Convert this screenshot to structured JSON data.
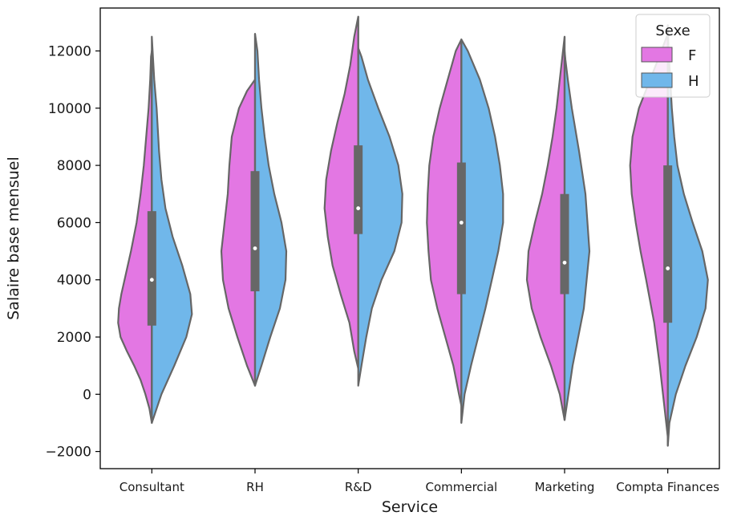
{
  "chart_data": {
    "type": "violin",
    "split": true,
    "xlabel": "Service",
    "ylabel": "Salaire base mensuel",
    "ylim": [
      -2600,
      13500
    ],
    "yticks": [
      -2000,
      0,
      2000,
      4000,
      6000,
      8000,
      10000,
      12000
    ],
    "ytick_labels": [
      "−2000",
      "0",
      "2000",
      "4000",
      "6000",
      "8000",
      "10000",
      "12000"
    ],
    "categories": [
      "Consultant",
      "RH",
      "R&D",
      "Commercial",
      "Marketing",
      "Compta Finances"
    ],
    "legend": {
      "title": "Sexe",
      "position": "top-right",
      "entries": [
        {
          "label": "F",
          "color": "#e377e3"
        },
        {
          "label": "H",
          "color": "#70b7ea"
        }
      ]
    },
    "series": [
      {
        "name": "F",
        "color": "#e377e3",
        "profiles": [
          [
            [
              -1000,
              0
            ],
            [
              -500,
              3
            ],
            [
              0,
              8
            ],
            [
              500,
              14
            ],
            [
              1000,
              22
            ],
            [
              1500,
              31
            ],
            [
              2000,
              39
            ],
            [
              2500,
              42
            ],
            [
              3000,
              41
            ],
            [
              3500,
              38
            ],
            [
              4000,
              34
            ],
            [
              5000,
              26
            ],
            [
              6000,
              19
            ],
            [
              7000,
              14
            ],
            [
              8000,
              10
            ],
            [
              9000,
              7
            ],
            [
              10000,
              4
            ],
            [
              11000,
              2
            ],
            [
              11800,
              1
            ],
            [
              12000,
              0
            ]
          ],
          [
            [
              300,
              0
            ],
            [
              1000,
              10
            ],
            [
              2000,
              22
            ],
            [
              3000,
              33
            ],
            [
              4000,
              40
            ],
            [
              5000,
              42
            ],
            [
              6000,
              38
            ],
            [
              7000,
              34
            ],
            [
              8000,
              32
            ],
            [
              9000,
              29
            ],
            [
              10000,
              20
            ],
            [
              10600,
              10
            ],
            [
              11000,
              0
            ]
          ],
          [
            [
              900,
              0
            ],
            [
              1500,
              5
            ],
            [
              2500,
              11
            ],
            [
              3500,
              22
            ],
            [
              4500,
              32
            ],
            [
              5500,
              38
            ],
            [
              6500,
              42
            ],
            [
              7500,
              40
            ],
            [
              8500,
              34
            ],
            [
              9500,
              26
            ],
            [
              10500,
              17
            ],
            [
              11500,
              10
            ],
            [
              12500,
              5
            ],
            [
              13200,
              0
            ]
          ],
          [
            [
              -400,
              0
            ],
            [
              0,
              3
            ],
            [
              1000,
              10
            ],
            [
              2000,
              20
            ],
            [
              3000,
              30
            ],
            [
              4000,
              38
            ],
            [
              5000,
              41
            ],
            [
              6000,
              43
            ],
            [
              7000,
              42
            ],
            [
              8000,
              40
            ],
            [
              9000,
              35
            ],
            [
              10000,
              27
            ],
            [
              11000,
              17
            ],
            [
              12000,
              7
            ],
            [
              12400,
              0
            ]
          ],
          [
            [
              -900,
              0
            ],
            [
              0,
              6
            ],
            [
              1000,
              17
            ],
            [
              2000,
              30
            ],
            [
              3000,
              41
            ],
            [
              4000,
              47
            ],
            [
              5000,
              45
            ],
            [
              6000,
              37
            ],
            [
              7000,
              28
            ],
            [
              8000,
              21
            ],
            [
              9000,
              15
            ],
            [
              10000,
              10
            ],
            [
              11000,
              6
            ],
            [
              12000,
              2
            ],
            [
              12500,
              0
            ]
          ],
          [
            [
              -1500,
              0
            ],
            [
              -500,
              4
            ],
            [
              1000,
              10
            ],
            [
              2500,
              17
            ],
            [
              4000,
              27
            ],
            [
              5000,
              34
            ],
            [
              6000,
              40
            ],
            [
              7000,
              45
            ],
            [
              8000,
              47
            ],
            [
              9000,
              44
            ],
            [
              10000,
              36
            ],
            [
              11000,
              22
            ],
            [
              12000,
              8
            ],
            [
              12600,
              0
            ]
          ]
        ]
      },
      {
        "name": "H",
        "color": "#70b7ea",
        "profiles": [
          [
            [
              -1000,
              0
            ],
            [
              0,
              12
            ],
            [
              1000,
              28
            ],
            [
              2000,
              43
            ],
            [
              2800,
              50
            ],
            [
              3500,
              48
            ],
            [
              4500,
              38
            ],
            [
              5500,
              26
            ],
            [
              6500,
              17
            ],
            [
              7500,
              12
            ],
            [
              8500,
              9
            ],
            [
              10000,
              6
            ],
            [
              11000,
              3
            ],
            [
              12000,
              1
            ],
            [
              12500,
              0
            ]
          ],
          [
            [
              300,
              0
            ],
            [
              1000,
              8
            ],
            [
              2000,
              19
            ],
            [
              3000,
              31
            ],
            [
              4000,
              38
            ],
            [
              5000,
              39
            ],
            [
              6000,
              33
            ],
            [
              7000,
              24
            ],
            [
              8000,
              17
            ],
            [
              9000,
              12
            ],
            [
              10000,
              8
            ],
            [
              11000,
              5
            ],
            [
              12000,
              3
            ],
            [
              12600,
              0
            ]
          ],
          [
            [
              300,
              0
            ],
            [
              1000,
              4
            ],
            [
              2000,
              10
            ],
            [
              3000,
              17
            ],
            [
              4000,
              29
            ],
            [
              5000,
              45
            ],
            [
              6000,
              54
            ],
            [
              7000,
              55
            ],
            [
              8000,
              50
            ],
            [
              9000,
              39
            ],
            [
              10000,
              25
            ],
            [
              11000,
              12
            ],
            [
              11800,
              4
            ],
            [
              12100,
              0
            ]
          ],
          [
            [
              -1000,
              0
            ],
            [
              0,
              4
            ],
            [
              1000,
              12
            ],
            [
              2000,
              21
            ],
            [
              3000,
              30
            ],
            [
              4000,
              38
            ],
            [
              5000,
              46
            ],
            [
              6000,
              52
            ],
            [
              7000,
              52
            ],
            [
              8000,
              48
            ],
            [
              9000,
              42
            ],
            [
              10000,
              34
            ],
            [
              11000,
              23
            ],
            [
              12000,
              8
            ],
            [
              12400,
              0
            ]
          ],
          [
            [
              -900,
              0
            ],
            [
              1000,
              10
            ],
            [
              3000,
              24
            ],
            [
              5000,
              31
            ],
            [
              7000,
              26
            ],
            [
              8500,
              18
            ],
            [
              10000,
              9
            ],
            [
              11000,
              4
            ],
            [
              11700,
              1
            ],
            [
              12000,
              0
            ]
          ],
          [
            [
              -1800,
              0
            ],
            [
              -1000,
              2
            ],
            [
              0,
              10
            ],
            [
              1000,
              22
            ],
            [
              2000,
              36
            ],
            [
              3000,
              47
            ],
            [
              4000,
              50
            ],
            [
              5000,
              43
            ],
            [
              6000,
              31
            ],
            [
              7000,
              20
            ],
            [
              8000,
              12
            ],
            [
              9000,
              8
            ],
            [
              10000,
              5
            ],
            [
              11000,
              3
            ],
            [
              12000,
              1
            ],
            [
              12900,
              0
            ]
          ]
        ]
      }
    ],
    "box_stats": [
      {
        "q1": 2400,
        "median": 4000,
        "q3": 6400,
        "whisker_low": -1000,
        "whisker_high": 12000
      },
      {
        "q1": 3600,
        "median": 5100,
        "q3": 7800,
        "whisker_low": 300,
        "whisker_high": 12600
      },
      {
        "q1": 5600,
        "median": 6500,
        "q3": 8700,
        "whisker_low": 900,
        "whisker_high": 13200
      },
      {
        "q1": 3500,
        "median": 6000,
        "q3": 8100,
        "whisker_low": -1000,
        "whisker_high": 12400
      },
      {
        "q1": 3500,
        "median": 4600,
        "q3": 7000,
        "whisker_low": -900,
        "whisker_high": 12500
      },
      {
        "q1": 2500,
        "median": 4400,
        "q3": 8000,
        "whisker_low": -1800,
        "whisker_high": 12900
      }
    ]
  }
}
